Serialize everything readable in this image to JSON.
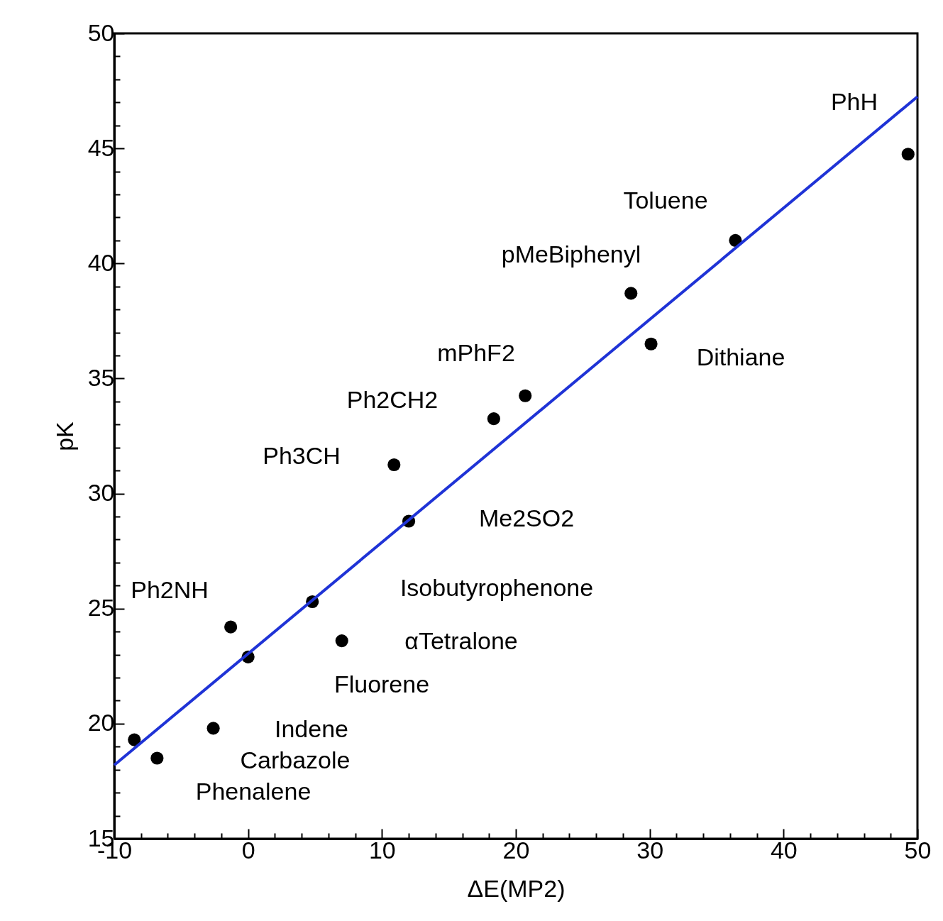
{
  "chart_data": {
    "type": "scatter",
    "xlabel": "ΔE(MP2)",
    "ylabel": "pK",
    "xlim": [
      -10,
      50
    ],
    "ylim": [
      15,
      50
    ],
    "xticks": [
      -10,
      {
        "value": -8,
        "label": null
      },
      {
        "value": -6,
        "label": null
      },
      {
        "value": -4,
        "label": null
      },
      {
        "value": -2,
        "label": null
      },
      0,
      {
        "value": 2,
        "label": null
      },
      {
        "value": 4,
        "label": null
      },
      {
        "value": 6,
        "label": null
      },
      {
        "value": 8,
        "label": null
      },
      10,
      {
        "value": 12,
        "label": null
      },
      {
        "value": 14,
        "label": null
      },
      {
        "value": 16,
        "label": null
      },
      {
        "value": 18,
        "label": null
      },
      20,
      {
        "value": 22,
        "label": null
      },
      {
        "value": 24,
        "label": null
      },
      {
        "value": 26,
        "label": null
      },
      {
        "value": 28,
        "label": null
      },
      30,
      {
        "value": 32,
        "label": null
      },
      {
        "value": 34,
        "label": null
      },
      {
        "value": 36,
        "label": null
      },
      {
        "value": 38,
        "label": null
      },
      40,
      {
        "value": 42,
        "label": null
      },
      {
        "value": 44,
        "label": null
      },
      {
        "value": 46,
        "label": null
      },
      {
        "value": 48,
        "label": null
      },
      50
    ],
    "yticks": [
      15,
      {
        "value": 16,
        "label": null
      },
      {
        "value": 17,
        "label": null
      },
      {
        "value": 18,
        "label": null
      },
      {
        "value": 19,
        "label": null
      },
      20,
      {
        "value": 21,
        "label": null
      },
      {
        "value": 22,
        "label": null
      },
      {
        "value": 23,
        "label": null
      },
      {
        "value": 24,
        "label": null
      },
      25,
      {
        "value": 26,
        "label": null
      },
      {
        "value": 27,
        "label": null
      },
      {
        "value": 28,
        "label": null
      },
      {
        "value": 29,
        "label": null
      },
      30,
      {
        "value": 31,
        "label": null
      },
      {
        "value": 32,
        "label": null
      },
      {
        "value": 33,
        "label": null
      },
      {
        "value": 34,
        "label": null
      },
      35,
      {
        "value": 36,
        "label": null
      },
      {
        "value": 37,
        "label": null
      },
      {
        "value": 38,
        "label": null
      },
      {
        "value": 39,
        "label": null
      },
      40,
      {
        "value": 41,
        "label": null
      },
      {
        "value": 42,
        "label": null
      },
      {
        "value": 43,
        "label": null
      },
      {
        "value": 44,
        "label": null
      },
      45,
      {
        "value": 46,
        "label": null
      },
      {
        "value": 47,
        "label": null
      },
      {
        "value": 48,
        "label": null
      },
      {
        "value": 49,
        "label": null
      },
      50
    ],
    "grid": false,
    "series": [
      {
        "color": "#000000",
        "marker": "circle",
        "x": [
          -8.5,
          -6.8,
          -2.6,
          -1.3,
          0.0,
          4.8,
          7.0,
          10.9,
          12.0,
          18.35,
          20.7,
          28.6,
          30.1,
          36.4,
          49.3
        ],
        "values": [
          19.3,
          18.5,
          19.8,
          24.2,
          22.9,
          25.3,
          23.6,
          31.25,
          28.8,
          33.25,
          34.25,
          38.7,
          36.5,
          41.0,
          44.75
        ]
      },
      {
        "type": "line",
        "color": "#1f33d6",
        "line_style": "solid",
        "x": [
          -10,
          50
        ],
        "values": [
          18.2,
          47.25
        ]
      }
    ],
    "annotations": [
      "PhH",
      "Toluene",
      "pMeBiphenyl",
      "mPhF2",
      "Dithiane",
      "Ph2CH2",
      "Ph3CH",
      "Me2SO2",
      "Ph2NH",
      "Isobutyrophenone",
      "αTetralone",
      "Fluorene",
      "Indene",
      "Carbazole",
      "Phenalene"
    ]
  }
}
